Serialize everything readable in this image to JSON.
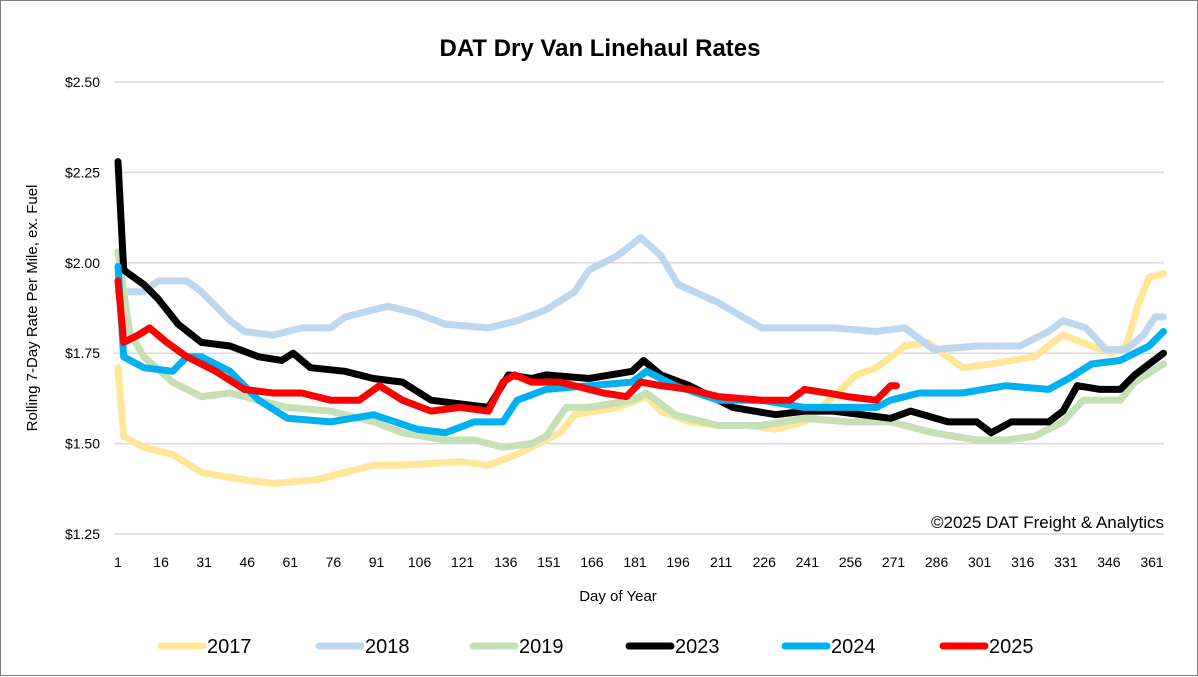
{
  "chart_data": {
    "type": "line",
    "title": "DAT Dry Van Linehaul Rates",
    "xlabel": "Day of Year",
    "ylabel": "Rolling 7-Day Rate Per Mile, ex. Fuel",
    "annotation": "©2025 DAT Freight & Analytics",
    "xlim": [
      1,
      365
    ],
    "ylim": [
      1.25,
      2.5
    ],
    "x_ticks": [
      1,
      16,
      31,
      46,
      61,
      76,
      91,
      106,
      121,
      136,
      151,
      166,
      181,
      196,
      211,
      226,
      241,
      256,
      271,
      286,
      301,
      316,
      331,
      346,
      361
    ],
    "y_ticks": [
      1.25,
      1.5,
      1.75,
      2.0,
      2.25,
      2.5
    ],
    "y_tick_labels": [
      "$1.25",
      "$1.50",
      "$1.75",
      "$2.00",
      "$2.25",
      "$2.50"
    ],
    "grid": "horizontal",
    "legend_position": "bottom",
    "series": [
      {
        "name": "2017",
        "color": "#FFE699",
        "points": [
          [
            1,
            1.71
          ],
          [
            3,
            1.52
          ],
          [
            10,
            1.49
          ],
          [
            20,
            1.47
          ],
          [
            30,
            1.42
          ],
          [
            45,
            1.4
          ],
          [
            55,
            1.39
          ],
          [
            70,
            1.4
          ],
          [
            90,
            1.44
          ],
          [
            100,
            1.44
          ],
          [
            120,
            1.45
          ],
          [
            130,
            1.44
          ],
          [
            140,
            1.47
          ],
          [
            150,
            1.51
          ],
          [
            155,
            1.53
          ],
          [
            160,
            1.58
          ],
          [
            175,
            1.6
          ],
          [
            185,
            1.63
          ],
          [
            190,
            1.59
          ],
          [
            200,
            1.56
          ],
          [
            210,
            1.55
          ],
          [
            220,
            1.55
          ],
          [
            230,
            1.54
          ],
          [
            240,
            1.56
          ],
          [
            250,
            1.63
          ],
          [
            258,
            1.69
          ],
          [
            265,
            1.71
          ],
          [
            275,
            1.77
          ],
          [
            283,
            1.78
          ],
          [
            295,
            1.71
          ],
          [
            305,
            1.72
          ],
          [
            320,
            1.74
          ],
          [
            330,
            1.8
          ],
          [
            340,
            1.77
          ],
          [
            347,
            1.75
          ],
          [
            352,
            1.77
          ],
          [
            356,
            1.88
          ],
          [
            360,
            1.96
          ],
          [
            365,
            1.97
          ]
        ]
      },
      {
        "name": "2018",
        "color": "#BDD7EE",
        "points": [
          [
            1,
            1.92
          ],
          [
            10,
            1.92
          ],
          [
            15,
            1.95
          ],
          [
            25,
            1.95
          ],
          [
            30,
            1.92
          ],
          [
            40,
            1.84
          ],
          [
            45,
            1.81
          ],
          [
            55,
            1.8
          ],
          [
            65,
            1.82
          ],
          [
            75,
            1.82
          ],
          [
            80,
            1.85
          ],
          [
            90,
            1.87
          ],
          [
            95,
            1.88
          ],
          [
            105,
            1.86
          ],
          [
            115,
            1.83
          ],
          [
            130,
            1.82
          ],
          [
            140,
            1.84
          ],
          [
            150,
            1.87
          ],
          [
            160,
            1.92
          ],
          [
            165,
            1.98
          ],
          [
            175,
            2.02
          ],
          [
            183,
            2.07
          ],
          [
            190,
            2.02
          ],
          [
            196,
            1.94
          ],
          [
            210,
            1.89
          ],
          [
            225,
            1.82
          ],
          [
            240,
            1.82
          ],
          [
            250,
            1.82
          ],
          [
            265,
            1.81
          ],
          [
            275,
            1.82
          ],
          [
            285,
            1.76
          ],
          [
            300,
            1.77
          ],
          [
            315,
            1.77
          ],
          [
            325,
            1.81
          ],
          [
            330,
            1.84
          ],
          [
            338,
            1.82
          ],
          [
            345,
            1.76
          ],
          [
            352,
            1.76
          ],
          [
            358,
            1.8
          ],
          [
            362,
            1.85
          ],
          [
            365,
            1.85
          ]
        ]
      },
      {
        "name": "2019",
        "color": "#C5E0B4",
        "points": [
          [
            1,
            2.03
          ],
          [
            5,
            1.81
          ],
          [
            10,
            1.74
          ],
          [
            20,
            1.67
          ],
          [
            30,
            1.63
          ],
          [
            40,
            1.64
          ],
          [
            50,
            1.62
          ],
          [
            60,
            1.6
          ],
          [
            75,
            1.59
          ],
          [
            90,
            1.56
          ],
          [
            100,
            1.53
          ],
          [
            115,
            1.51
          ],
          [
            125,
            1.51
          ],
          [
            135,
            1.49
          ],
          [
            145,
            1.5
          ],
          [
            150,
            1.52
          ],
          [
            157,
            1.6
          ],
          [
            165,
            1.6
          ],
          [
            180,
            1.62
          ],
          [
            185,
            1.64
          ],
          [
            195,
            1.58
          ],
          [
            210,
            1.55
          ],
          [
            225,
            1.55
          ],
          [
            240,
            1.57
          ],
          [
            255,
            1.56
          ],
          [
            270,
            1.56
          ],
          [
            285,
            1.53
          ],
          [
            300,
            1.51
          ],
          [
            310,
            1.51
          ],
          [
            320,
            1.52
          ],
          [
            330,
            1.56
          ],
          [
            337,
            1.62
          ],
          [
            350,
            1.62
          ],
          [
            355,
            1.67
          ],
          [
            365,
            1.72
          ]
        ]
      },
      {
        "name": "2023",
        "color": "#000000",
        "points": [
          [
            1,
            2.28
          ],
          [
            3,
            1.98
          ],
          [
            10,
            1.94
          ],
          [
            15,
            1.9
          ],
          [
            22,
            1.83
          ],
          [
            30,
            1.78
          ],
          [
            40,
            1.77
          ],
          [
            50,
            1.74
          ],
          [
            58,
            1.73
          ],
          [
            62,
            1.75
          ],
          [
            68,
            1.71
          ],
          [
            80,
            1.7
          ],
          [
            90,
            1.68
          ],
          [
            100,
            1.67
          ],
          [
            110,
            1.62
          ],
          [
            120,
            1.61
          ],
          [
            130,
            1.6
          ],
          [
            137,
            1.69
          ],
          [
            145,
            1.68
          ],
          [
            150,
            1.69
          ],
          [
            165,
            1.68
          ],
          [
            180,
            1.7
          ],
          [
            184,
            1.73
          ],
          [
            190,
            1.69
          ],
          [
            200,
            1.66
          ],
          [
            215,
            1.6
          ],
          [
            230,
            1.58
          ],
          [
            240,
            1.59
          ],
          [
            250,
            1.59
          ],
          [
            260,
            1.58
          ],
          [
            270,
            1.57
          ],
          [
            277,
            1.59
          ],
          [
            290,
            1.56
          ],
          [
            300,
            1.56
          ],
          [
            305,
            1.53
          ],
          [
            312,
            1.56
          ],
          [
            325,
            1.56
          ],
          [
            330,
            1.59
          ],
          [
            335,
            1.66
          ],
          [
            343,
            1.65
          ],
          [
            350,
            1.65
          ],
          [
            355,
            1.69
          ],
          [
            365,
            1.75
          ]
        ]
      },
      {
        "name": "2024",
        "color": "#00B0F0",
        "points": [
          [
            1,
            1.99
          ],
          [
            3,
            1.74
          ],
          [
            10,
            1.71
          ],
          [
            20,
            1.7
          ],
          [
            25,
            1.74
          ],
          [
            30,
            1.74
          ],
          [
            40,
            1.7
          ],
          [
            50,
            1.62
          ],
          [
            60,
            1.57
          ],
          [
            75,
            1.56
          ],
          [
            90,
            1.58
          ],
          [
            105,
            1.54
          ],
          [
            115,
            1.53
          ],
          [
            125,
            1.56
          ],
          [
            135,
            1.56
          ],
          [
            140,
            1.62
          ],
          [
            150,
            1.65
          ],
          [
            165,
            1.66
          ],
          [
            180,
            1.67
          ],
          [
            185,
            1.7
          ],
          [
            195,
            1.66
          ],
          [
            210,
            1.62
          ],
          [
            225,
            1.62
          ],
          [
            240,
            1.6
          ],
          [
            255,
            1.6
          ],
          [
            265,
            1.6
          ],
          [
            270,
            1.62
          ],
          [
            280,
            1.64
          ],
          [
            295,
            1.64
          ],
          [
            310,
            1.66
          ],
          [
            325,
            1.65
          ],
          [
            332,
            1.68
          ],
          [
            340,
            1.72
          ],
          [
            350,
            1.73
          ],
          [
            360,
            1.77
          ],
          [
            365,
            1.81
          ]
        ]
      },
      {
        "name": "2025",
        "color": "#FF0000",
        "points": [
          [
            1,
            1.95
          ],
          [
            3,
            1.78
          ],
          [
            8,
            1.8
          ],
          [
            12,
            1.82
          ],
          [
            18,
            1.78
          ],
          [
            25,
            1.74
          ],
          [
            35,
            1.7
          ],
          [
            45,
            1.65
          ],
          [
            55,
            1.64
          ],
          [
            65,
            1.64
          ],
          [
            75,
            1.62
          ],
          [
            85,
            1.62
          ],
          [
            92,
            1.66
          ],
          [
            100,
            1.62
          ],
          [
            110,
            1.59
          ],
          [
            120,
            1.6
          ],
          [
            130,
            1.59
          ],
          [
            135,
            1.67
          ],
          [
            139,
            1.69
          ],
          [
            145,
            1.67
          ],
          [
            155,
            1.67
          ],
          [
            170,
            1.64
          ],
          [
            178,
            1.63
          ],
          [
            183,
            1.67
          ],
          [
            190,
            1.66
          ],
          [
            200,
            1.65
          ],
          [
            210,
            1.63
          ],
          [
            225,
            1.62
          ],
          [
            235,
            1.62
          ],
          [
            240,
            1.65
          ],
          [
            248,
            1.64
          ],
          [
            255,
            1.63
          ],
          [
            265,
            1.62
          ],
          [
            270,
            1.66
          ],
          [
            272,
            1.66
          ]
        ]
      }
    ]
  }
}
